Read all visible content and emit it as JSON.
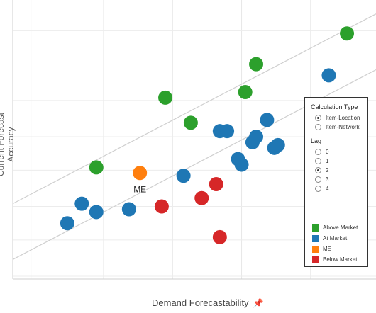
{
  "chart_data": {
    "type": "scatter",
    "xlabel": "Demand Forecastability",
    "ylabel": "Current Forecast Accuracy",
    "xlim": [
      0,
      100
    ],
    "ylim": [
      0,
      100
    ],
    "grid": true,
    "series": [
      {
        "name": "Above Market",
        "color": "#2ca02c",
        "points": [
          [
            23,
            40
          ],
          [
            42,
            65
          ],
          [
            49,
            56
          ],
          [
            64,
            67
          ],
          [
            67,
            77
          ],
          [
            92,
            88
          ]
        ]
      },
      {
        "name": "At Market",
        "color": "#1f77b4",
        "points": [
          [
            15,
            20
          ],
          [
            19,
            27
          ],
          [
            23,
            24
          ],
          [
            32,
            25
          ],
          [
            47,
            37
          ],
          [
            57,
            53
          ],
          [
            59,
            53
          ],
          [
            62,
            43
          ],
          [
            63,
            41
          ],
          [
            66,
            49
          ],
          [
            67,
            51
          ],
          [
            70,
            57
          ],
          [
            72,
            47
          ],
          [
            73,
            48
          ],
          [
            87,
            73
          ]
        ]
      },
      {
        "name": "ME",
        "color": "#ff7f0e",
        "points": [
          [
            35,
            38
          ]
        ]
      },
      {
        "name": "Below Market",
        "color": "#d62728",
        "points": [
          [
            41,
            26
          ],
          [
            52,
            29
          ],
          [
            56,
            34
          ],
          [
            57,
            15
          ]
        ]
      }
    ],
    "annotations": [
      {
        "text": "ME",
        "series": "ME"
      }
    ],
    "trend_lines": [
      {
        "from": [
          0,
          27
        ],
        "to": [
          100,
          95
        ]
      },
      {
        "from": [
          0,
          7
        ],
        "to": [
          100,
          75
        ]
      }
    ]
  },
  "legend": {
    "calc_title": "Calculation Type",
    "calc_options": [
      {
        "label": "Item-Location",
        "selected": true
      },
      {
        "label": "Item-Network",
        "selected": false
      }
    ],
    "lag_title": "Lag",
    "lag_options": [
      {
        "label": "0",
        "selected": false
      },
      {
        "label": "1",
        "selected": false
      },
      {
        "label": "2",
        "selected": true
      },
      {
        "label": "3",
        "selected": false
      },
      {
        "label": "4",
        "selected": false
      }
    ],
    "items": [
      {
        "label": "Above Market",
        "color": "#2ca02c"
      },
      {
        "label": "At Market",
        "color": "#1f77b4"
      },
      {
        "label": "ME",
        "color": "#ff7f0e"
      },
      {
        "label": "Below Market",
        "color": "#d62728"
      }
    ]
  },
  "pin_icon": "pin-icon"
}
